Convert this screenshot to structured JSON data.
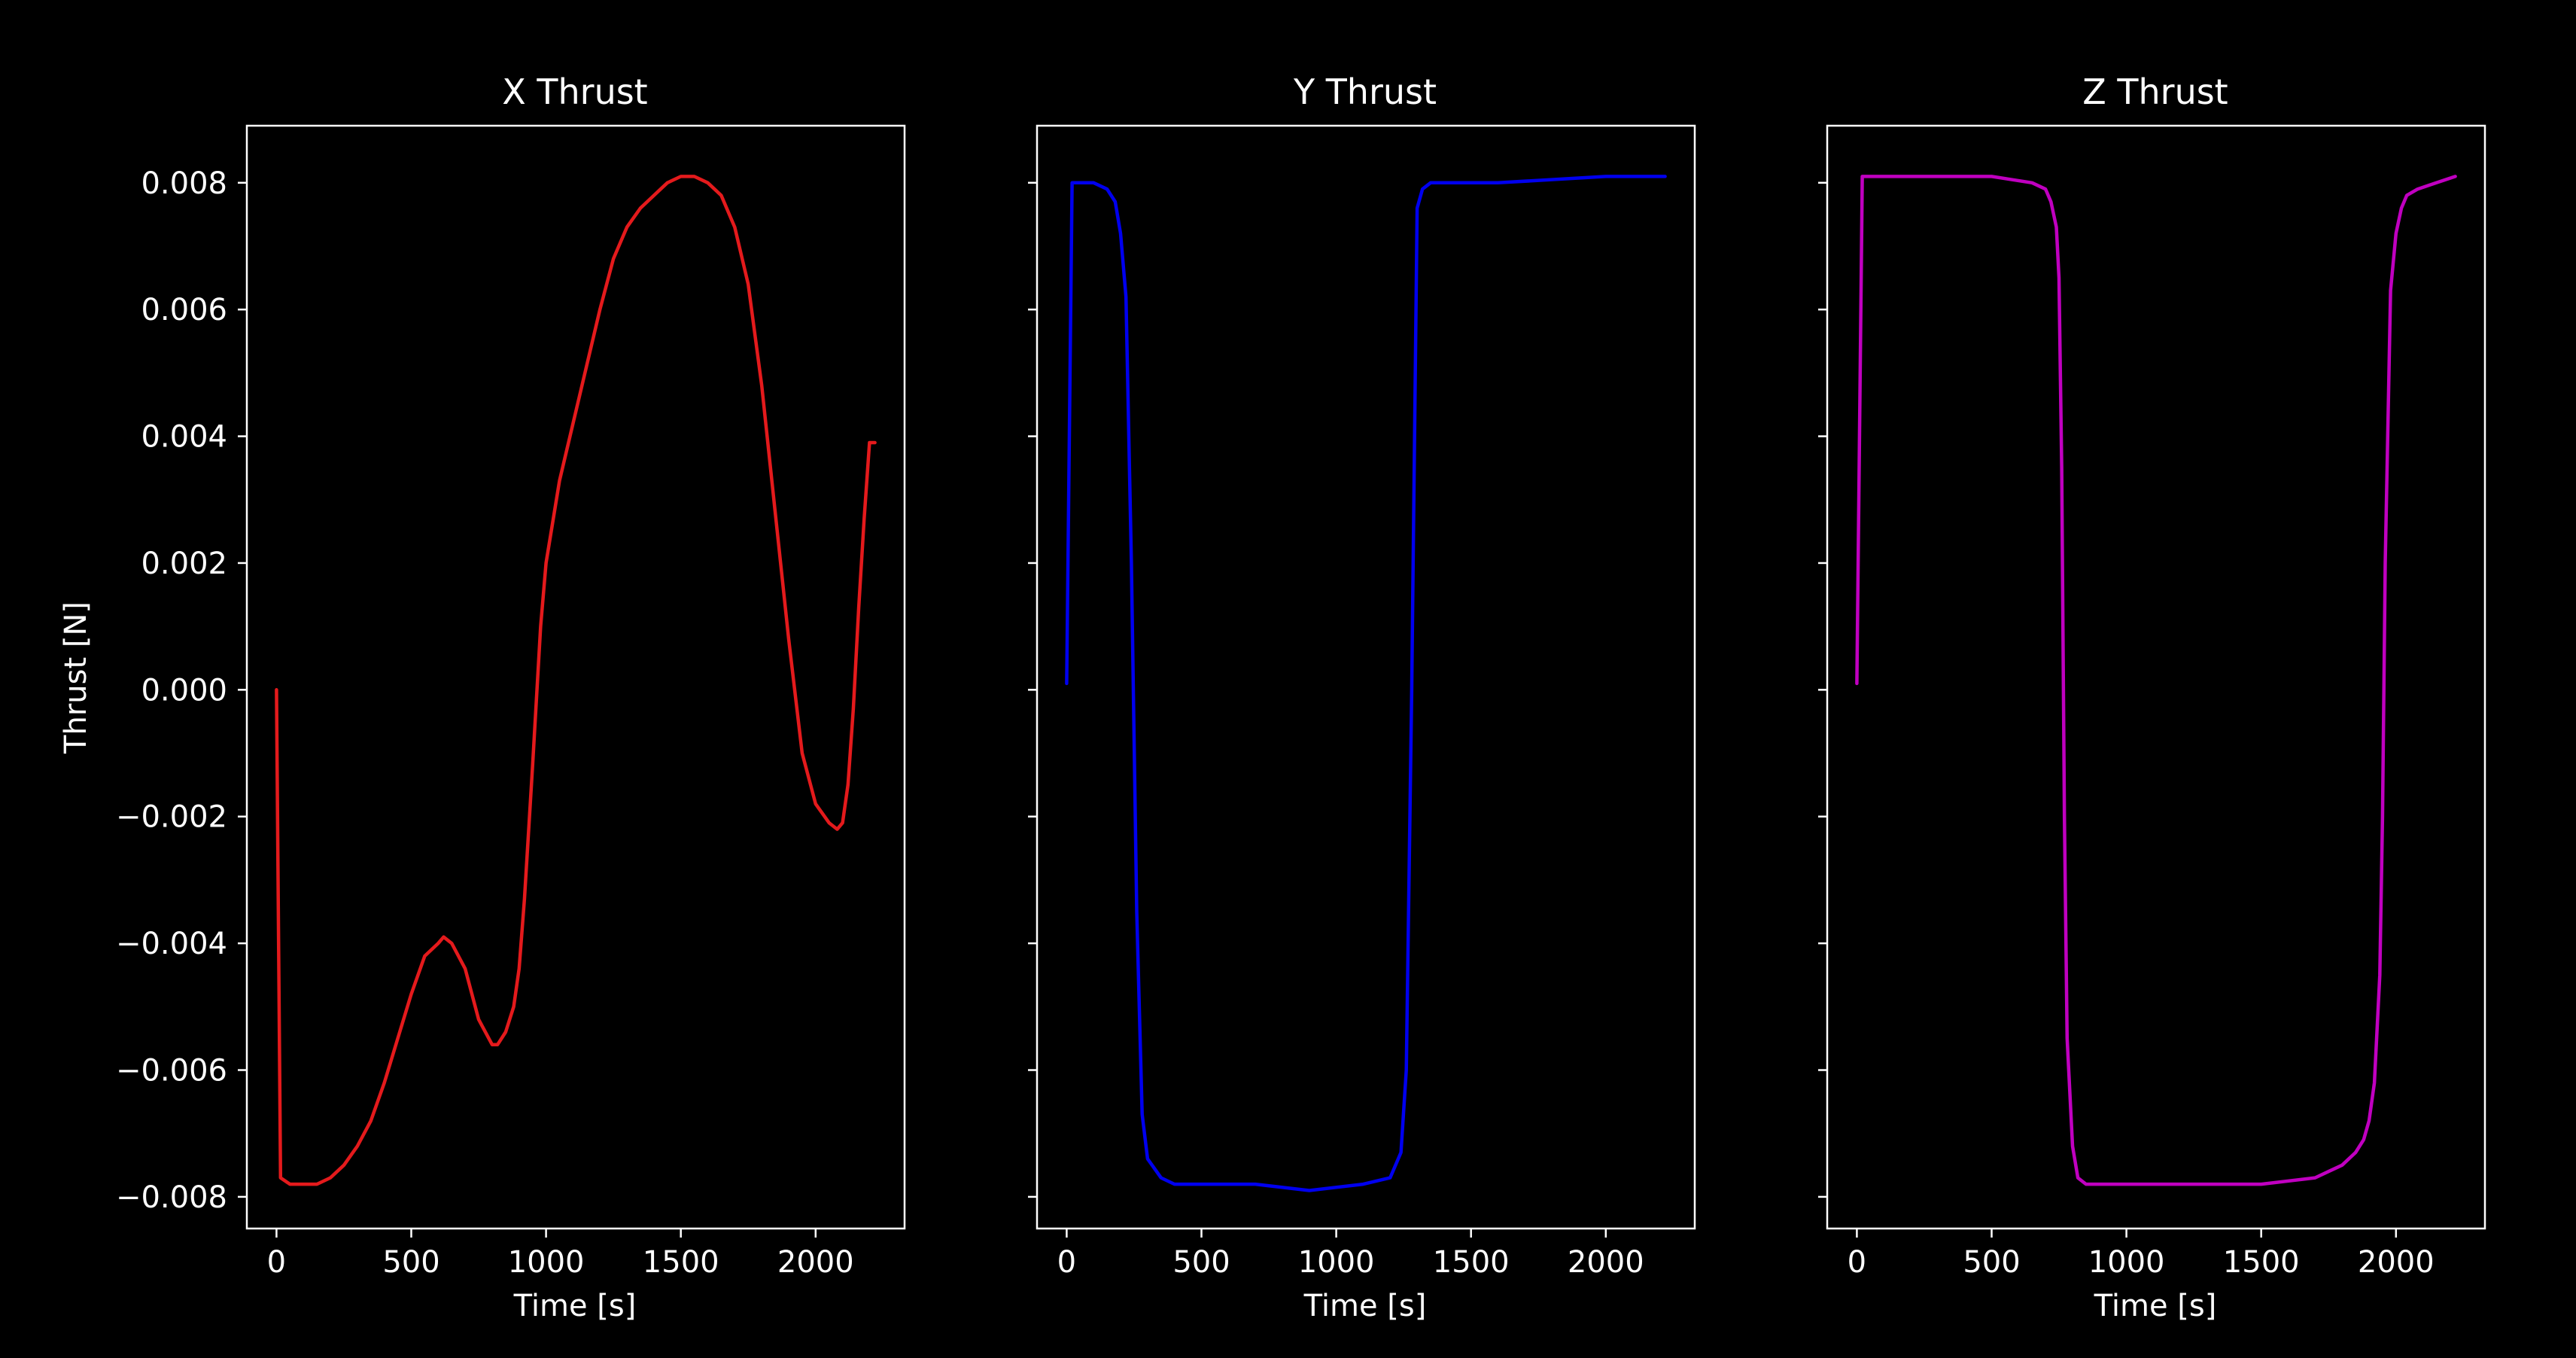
{
  "figure": {
    "background": "#000000",
    "foreground": "#ffffff"
  },
  "chart_data": [
    {
      "type": "line",
      "title": "X Thrust",
      "xlabel": "Time [s]",
      "ylabel": "Thrust [N]",
      "xlim": [
        -110,
        2330
      ],
      "ylim": [
        -0.0085,
        0.0089
      ],
      "xticks": [
        0,
        500,
        1000,
        1500,
        2000
      ],
      "xtick_labels": [
        "0",
        "500",
        "1000",
        "1500",
        "2000"
      ],
      "yticks": [
        -0.008,
        -0.006,
        -0.004,
        -0.002,
        0.0,
        0.002,
        0.004,
        0.006,
        0.008
      ],
      "ytick_labels": [
        "−0.008",
        "−0.006",
        "−0.004",
        "−0.002",
        "0.000",
        "0.002",
        "0.004",
        "0.006",
        "0.008"
      ],
      "grid": false,
      "series": [
        {
          "color": "#e41a1c",
          "x": [
            0,
            15,
            50,
            100,
            150,
            200,
            250,
            300,
            350,
            400,
            450,
            500,
            550,
            600,
            620,
            650,
            700,
            750,
            800,
            820,
            850,
            880,
            900,
            920,
            950,
            980,
            1000,
            1050,
            1100,
            1150,
            1200,
            1250,
            1300,
            1350,
            1400,
            1450,
            1500,
            1550,
            1600,
            1650,
            1700,
            1750,
            1800,
            1850,
            1900,
            1950,
            2000,
            2050,
            2080,
            2100,
            2120,
            2140,
            2160,
            2180,
            2200,
            2220
          ],
          "y": [
            0.0,
            -0.0077,
            -0.0078,
            -0.0078,
            -0.0078,
            -0.0077,
            -0.0075,
            -0.0072,
            -0.0068,
            -0.0062,
            -0.0055,
            -0.0048,
            -0.0042,
            -0.004,
            -0.0039,
            -0.004,
            -0.0044,
            -0.0052,
            -0.0056,
            -0.0056,
            -0.0054,
            -0.005,
            -0.0044,
            -0.0033,
            -0.0012,
            0.001,
            0.002,
            0.0033,
            0.0042,
            0.0051,
            0.006,
            0.0068,
            0.0073,
            0.0076,
            0.0078,
            0.008,
            0.0081,
            0.0081,
            0.008,
            0.0078,
            0.0073,
            0.0064,
            0.0048,
            0.0028,
            0.0008,
            -0.001,
            -0.0018,
            -0.0021,
            -0.0022,
            -0.0021,
            -0.0015,
            -0.0003,
            0.0013,
            0.0027,
            0.0039,
            0.0039
          ]
        }
      ]
    },
    {
      "type": "line",
      "title": "Y Thrust",
      "xlabel": "Time [s]",
      "ylabel": "",
      "xlim": [
        -110,
        2330
      ],
      "ylim": [
        -0.0085,
        0.0089
      ],
      "xticks": [
        0,
        500,
        1000,
        1500,
        2000
      ],
      "xtick_labels": [
        "0",
        "500",
        "1000",
        "1500",
        "2000"
      ],
      "yticks": [
        -0.008,
        -0.006,
        -0.004,
        -0.002,
        0.0,
        0.002,
        0.004,
        0.006,
        0.008
      ],
      "ytick_labels": [],
      "grid": false,
      "series": [
        {
          "color": "#0000ee",
          "x": [
            0,
            20,
            100,
            150,
            180,
            200,
            220,
            240,
            260,
            280,
            300,
            350,
            400,
            500,
            700,
            900,
            1100,
            1200,
            1240,
            1260,
            1280,
            1300,
            1320,
            1350,
            1400,
            1600,
            2000,
            2220
          ],
          "y": [
            0.0001,
            0.008,
            0.008,
            0.0079,
            0.0077,
            0.0072,
            0.0062,
            0.002,
            -0.0035,
            -0.0067,
            -0.0074,
            -0.0077,
            -0.0078,
            -0.0078,
            -0.0078,
            -0.0079,
            -0.0078,
            -0.0077,
            -0.0073,
            -0.006,
            0.0,
            0.0076,
            0.0079,
            0.008,
            0.008,
            0.008,
            0.0081,
            0.0081
          ]
        }
      ]
    },
    {
      "type": "line",
      "title": "Z Thrust",
      "xlabel": "Time [s]",
      "ylabel": "",
      "xlim": [
        -110,
        2330
      ],
      "ylim": [
        -0.0085,
        0.0089
      ],
      "xticks": [
        0,
        500,
        1000,
        1500,
        2000
      ],
      "xtick_labels": [
        "0",
        "500",
        "1000",
        "1500",
        "2000"
      ],
      "yticks": [
        -0.008,
        -0.006,
        -0.004,
        -0.002,
        0.0,
        0.002,
        0.004,
        0.006,
        0.008
      ],
      "ytick_labels": [],
      "grid": false,
      "series": [
        {
          "color": "#c000c0",
          "x": [
            0,
            20,
            200,
            500,
            650,
            700,
            720,
            740,
            750,
            760,
            770,
            780,
            800,
            820,
            850,
            900,
            1000,
            1200,
            1500,
            1700,
            1750,
            1800,
            1850,
            1880,
            1900,
            1920,
            1940,
            1950,
            1960,
            1980,
            2000,
            2020,
            2040,
            2080,
            2150,
            2220
          ],
          "y": [
            0.0001,
            0.0081,
            0.0081,
            0.0081,
            0.008,
            0.0079,
            0.0077,
            0.0073,
            0.0065,
            0.0035,
            -0.002,
            -0.0055,
            -0.0072,
            -0.0077,
            -0.0078,
            -0.0078,
            -0.0078,
            -0.0078,
            -0.0078,
            -0.0077,
            -0.0076,
            -0.0075,
            -0.0073,
            -0.0071,
            -0.0068,
            -0.0062,
            -0.0045,
            -0.002,
            0.002,
            0.0063,
            0.0072,
            0.0076,
            0.0078,
            0.0079,
            0.008,
            0.0081
          ]
        }
      ]
    }
  ]
}
